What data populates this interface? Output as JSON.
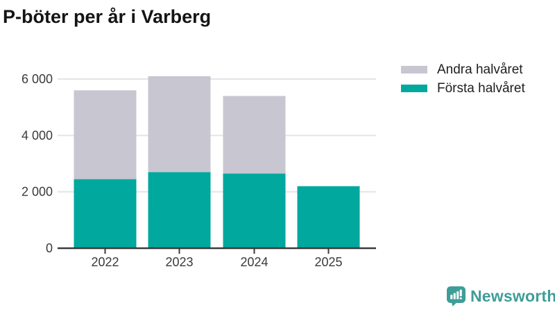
{
  "title": "P-böter per år i Varberg",
  "legend": [
    {
      "label": "Andra halvåret",
      "color": "#C8C6D1"
    },
    {
      "label": "Första halvåret",
      "color": "#00A89E"
    }
  ],
  "chart_data": {
    "type": "bar",
    "stacked": true,
    "title": "P-böter per år i Varberg",
    "categories": [
      "2022",
      "2023",
      "2024",
      "2025"
    ],
    "series": [
      {
        "name": "Första halvåret",
        "color": "#00A89E",
        "values": [
          2450,
          2700,
          2650,
          2200
        ]
      },
      {
        "name": "Andra halvåret",
        "color": "#C8C6D1",
        "values": [
          3150,
          3400,
          2750,
          0
        ]
      }
    ],
    "totals": [
      5600,
      6100,
      5400,
      2200
    ],
    "xlabel": "",
    "ylabel": "",
    "ylim": [
      0,
      6700
    ],
    "yticks": [
      {
        "value": 0,
        "label": "0"
      },
      {
        "value": 2000,
        "label": "2 000"
      },
      {
        "value": 4000,
        "label": "4 000"
      },
      {
        "value": 6000,
        "label": "6 000"
      }
    ],
    "grid": "horizontal",
    "legend_position": "top-right",
    "axis_color": "#3B3B3B",
    "gridline_color": "#E4E3E8",
    "tick_label_color": "#3A3A3A"
  },
  "branding": {
    "name": "Newsworthy",
    "logo_icon": "newsworthy-chart-speech-bubble-icon",
    "color": "#3F9D98"
  }
}
